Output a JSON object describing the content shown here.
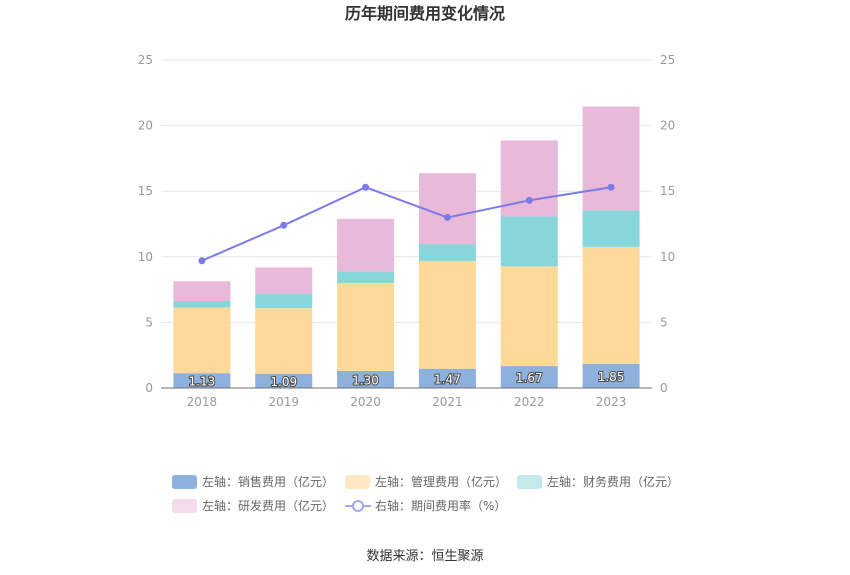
{
  "chart_data": {
    "type": "bar",
    "stacked": true,
    "title": "历年期间费用变化情况",
    "categories": [
      "2018",
      "2019",
      "2020",
      "2021",
      "2022",
      "2023"
    ],
    "y_left": {
      "min": 0,
      "max": 25,
      "ticks": [
        "0",
        "5",
        "10",
        "15",
        "20",
        "25"
      ]
    },
    "y_right": {
      "min": 0,
      "max": 25,
      "ticks": [
        "0",
        "5",
        "10",
        "15",
        "20",
        "25"
      ]
    },
    "grid": true,
    "legend_position": "bottom",
    "series": [
      {
        "name": "左轴：销售费用（亿元）",
        "type": "bar",
        "color": "#8eb0dc",
        "values": [
          1.13,
          1.09,
          1.3,
          1.47,
          1.67,
          1.85
        ],
        "labels": [
          "1.13",
          "1.09",
          "1.30",
          "1.47",
          "1.67",
          "1.85"
        ]
      },
      {
        "name": "左轴：管理费用（亿元）",
        "type": "bar",
        "color": "#ffd99a",
        "values": [
          5.0,
          5.0,
          6.7,
          8.2,
          7.6,
          8.9
        ]
      },
      {
        "name": "左轴：财务费用（亿元）",
        "type": "bar",
        "color": "#88d6da",
        "values": [
          0.5,
          1.1,
          0.9,
          1.3,
          3.8,
          2.8
        ]
      },
      {
        "name": "左轴：研发费用（亿元）",
        "type": "bar",
        "color": "#e8b9d9",
        "values": [
          1.5,
          2.0,
          4.0,
          5.4,
          5.8,
          7.9
        ]
      },
      {
        "name": "右轴：期间费用率（%）",
        "type": "line",
        "axis": "right",
        "color": "#7b7ce8",
        "values": [
          9.7,
          12.4,
          15.3,
          13.0,
          14.3,
          15.3
        ]
      }
    ],
    "legend_colors": [
      "#8eb0dc",
      "#ffe8c4",
      "#c2e9eb",
      "#f3dbec",
      "#a5a6f0"
    ],
    "source": "数据来源：恒生聚源"
  }
}
